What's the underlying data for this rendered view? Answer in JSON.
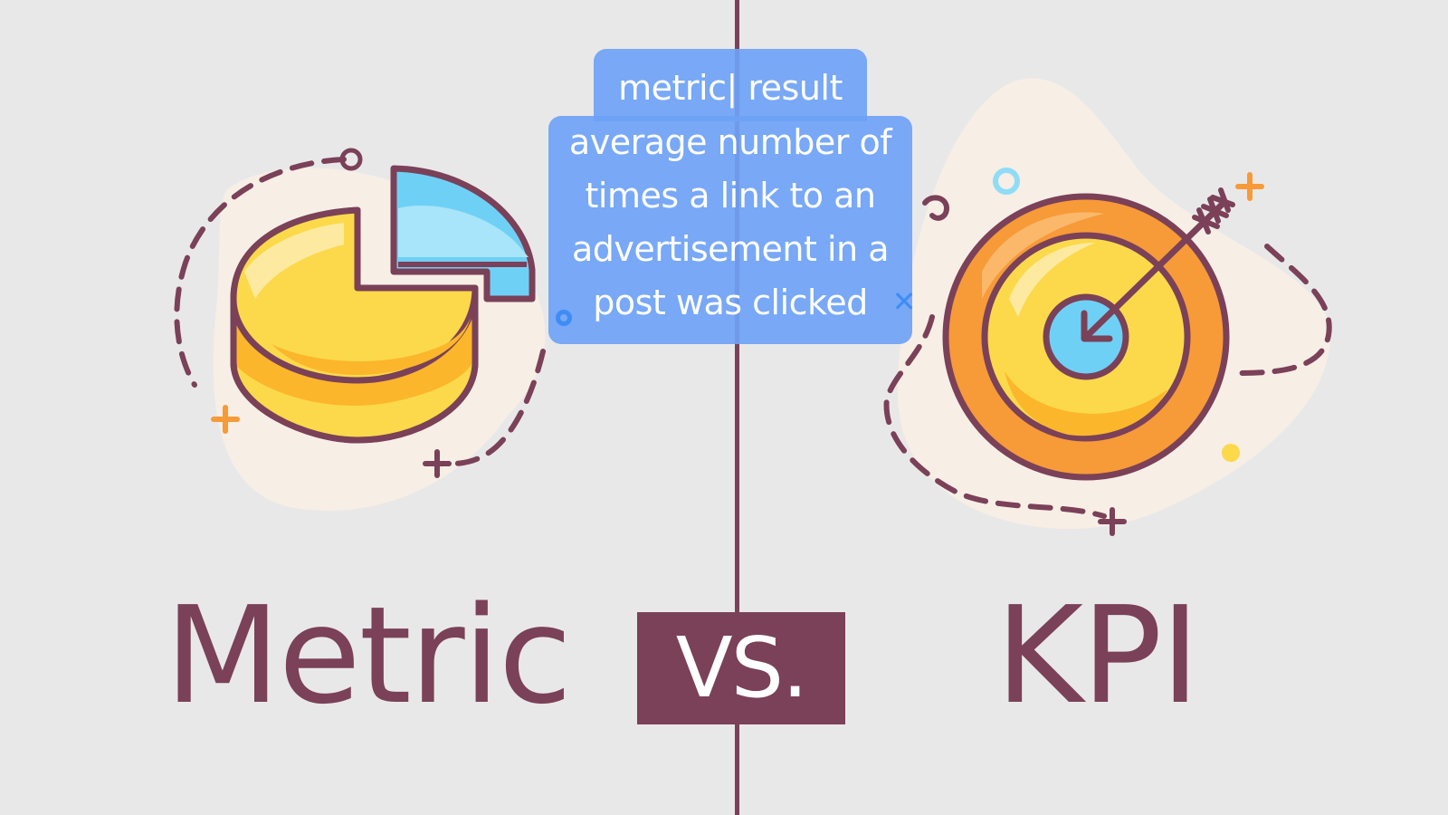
{
  "labels": {
    "left": "Metric",
    "middle": "VS.",
    "right": "KPI"
  },
  "caption": {
    "lines": [
      "metric| result",
      "average number of",
      "times a link to an",
      "advertisement in a",
      "post was clicked"
    ]
  },
  "icons": {
    "left": "pie-chart-icon",
    "right": "target-arrow-icon"
  },
  "colors": {
    "background": "#e9e8e8",
    "brand": "#7a4158",
    "caption_bg": "#6ea2f6",
    "yellow": "#fbd94a",
    "orange": "#f79a38",
    "blue": "#6fd0f5",
    "blob": "#f7eee6"
  }
}
